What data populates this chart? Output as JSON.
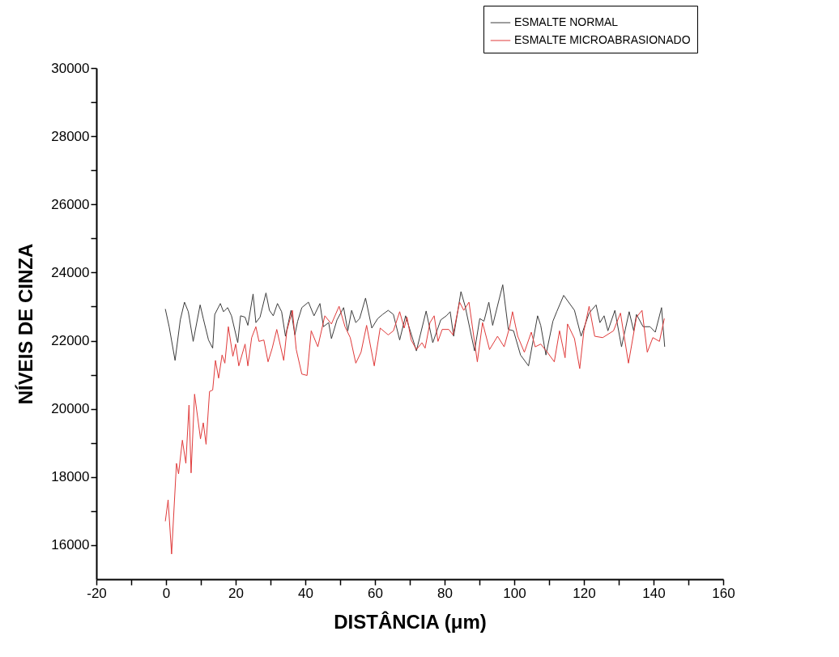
{
  "chart_data": {
    "type": "line",
    "xlabel": "DISTÂNCIA (μm)",
    "ylabel": "NÍVEIS DE CINZA",
    "xlim": [
      -20,
      160
    ],
    "xticks": [
      -20,
      {
        "value": -10,
        "label": null
      },
      0,
      {
        "value": 10,
        "label": null
      },
      20,
      {
        "value": 30,
        "label": null
      },
      40,
      {
        "value": 50,
        "label": null
      },
      60,
      {
        "value": 70,
        "label": null
      },
      80,
      {
        "value": 90,
        "label": null
      },
      100,
      {
        "value": 110,
        "label": null
      },
      120,
      {
        "value": 130,
        "label": null
      },
      140,
      {
        "value": 150,
        "label": null
      },
      160
    ],
    "ylim": [
      15000,
      30000
    ],
    "yticks": [
      16000,
      {
        "value": 17000,
        "label": null
      },
      18000,
      {
        "value": 19000,
        "label": null
      },
      20000,
      {
        "value": 21000,
        "label": null
      },
      22000,
      {
        "value": 23000,
        "label": null
      },
      24000,
      {
        "value": 25000,
        "label": null
      },
      26000,
      {
        "value": 27000,
        "label": null
      },
      28000,
      {
        "value": 29000,
        "label": null
      },
      30000
    ],
    "grid": false,
    "legend": "top right",
    "marker": "none",
    "line_style": "solid",
    "series": [
      {
        "name": "ESMALTE NORMAL",
        "color": "#3c3c3c",
        "x": [
          -0.2,
          0.9,
          2.6,
          4.1,
          5.3,
          6.4,
          7.8,
          9.8,
          10.7,
          12.2,
          13.4,
          14.0,
          15.6,
          16.5,
          17.7,
          18.8,
          20.6,
          21.4,
          22.7,
          23.5,
          25.0,
          25.8,
          27.0,
          28.7,
          29.7,
          30.8,
          32.0,
          33.2,
          34.3,
          35.9,
          37.0,
          37.8,
          39.0,
          40.9,
          42.5,
          44.2,
          45.2,
          46.7,
          47.5,
          49.1,
          51.0,
          52.2,
          53.3,
          54.5,
          55.6,
          57.3,
          59.1,
          60.8,
          62.2,
          63.8,
          65.3,
          67.1,
          68.8,
          71.9,
          74.7,
          76.6,
          78.9,
          80.5,
          81.6,
          82.6,
          84.7,
          85.9,
          88.6,
          90.1,
          91.3,
          92.7,
          93.8,
          96.7,
          98.3,
          99.8,
          101.8,
          104.1,
          106.7,
          107.6,
          109.1,
          111.1,
          112.2,
          114.2,
          117.3,
          119.2,
          121.5,
          123.5,
          124.6,
          125.8,
          126.9,
          128.9,
          130.8,
          133.0,
          134.3,
          135.1,
          137.0,
          139.0,
          140.5,
          142.3,
          143.2
        ],
        "values": [
          22930,
          22410,
          21420,
          22610,
          23130,
          22850,
          21980,
          23050,
          22650,
          22020,
          21780,
          22770,
          23090,
          22850,
          22970,
          22730,
          21940,
          22730,
          22690,
          22450,
          23370,
          22530,
          22690,
          23400,
          22890,
          22730,
          23090,
          22850,
          22130,
          22890,
          22170,
          22570,
          22970,
          23130,
          22730,
          23090,
          22410,
          22530,
          22060,
          22610,
          22970,
          22290,
          22890,
          22530,
          22650,
          23250,
          22370,
          22650,
          22770,
          22890,
          22770,
          22020,
          22730,
          21700,
          22870,
          21940,
          22610,
          22730,
          22850,
          22130,
          23440,
          23010,
          21700,
          22650,
          22570,
          23130,
          22450,
          23640,
          22330,
          22290,
          21580,
          21260,
          22730,
          22450,
          21580,
          22570,
          22850,
          23330,
          22890,
          22130,
          22810,
          23050,
          22530,
          22730,
          22290,
          22890,
          21820,
          22850,
          22290,
          22770,
          22410,
          22410,
          22250,
          22970,
          21820
        ]
      },
      {
        "name": "ESMALTE MICROABRASIONADO",
        "color": "#e03a3a",
        "x": [
          -0.2,
          0.6,
          1.6,
          3.0,
          3.6,
          4.7,
          5.7,
          6.6,
          7.2,
          8.2,
          9.9,
          10.7,
          11.5,
          12.5,
          13.4,
          14.2,
          15.1,
          16.1,
          16.9,
          17.9,
          19.2,
          20.0,
          20.9,
          22.7,
          23.5,
          24.6,
          25.8,
          26.7,
          28.1,
          29.3,
          30.5,
          31.8,
          33.8,
          34.7,
          36.3,
          37.4,
          39.0,
          40.5,
          41.7,
          43.6,
          45.6,
          47.5,
          49.7,
          51.4,
          52.9,
          54.5,
          56.0,
          57.6,
          59.8,
          61.5,
          63.8,
          65.3,
          67.1,
          68.4,
          69.2,
          70.4,
          71.9,
          73.5,
          74.4,
          75.8,
          77.0,
          78.1,
          79.3,
          81.2,
          82.4,
          84.3,
          85.5,
          87.0,
          88.2,
          89.4,
          90.9,
          92.9,
          95.2,
          97.1,
          98.7,
          99.5,
          101.0,
          102.9,
          104.9,
          106.0,
          107.6,
          109.5,
          111.5,
          113.0,
          114.6,
          115.3,
          117.3,
          118.8,
          120.0,
          121.5,
          123.1,
          125.4,
          128.5,
          130.5,
          132.8,
          135.1,
          136.7,
          138.2,
          139.8,
          141.7,
          143.1
        ],
        "values": [
          16700,
          17330,
          15740,
          18400,
          18090,
          19080,
          18400,
          20110,
          18120,
          20430,
          19120,
          19590,
          18960,
          20510,
          20550,
          21420,
          20900,
          21580,
          21340,
          22410,
          21540,
          21900,
          21260,
          21900,
          21260,
          22090,
          22410,
          21980,
          22020,
          21380,
          21780,
          22330,
          21420,
          22290,
          22890,
          21740,
          21020,
          20980,
          22290,
          21820,
          22730,
          22490,
          23010,
          22410,
          22090,
          21340,
          21660,
          22450,
          21260,
          22370,
          22170,
          22290,
          22850,
          22370,
          22690,
          22020,
          21740,
          21940,
          21780,
          22530,
          22730,
          21980,
          22330,
          22330,
          22170,
          23130,
          22890,
          23130,
          22250,
          21380,
          22530,
          21740,
          22130,
          21820,
          22410,
          22850,
          22130,
          21660,
          22250,
          21820,
          21900,
          21660,
          21380,
          22290,
          21500,
          22490,
          22060,
          21180,
          22290,
          23010,
          22130,
          22090,
          22290,
          22810,
          21340,
          22690,
          22890,
          21660,
          22090,
          21980,
          22650
        ]
      }
    ]
  }
}
